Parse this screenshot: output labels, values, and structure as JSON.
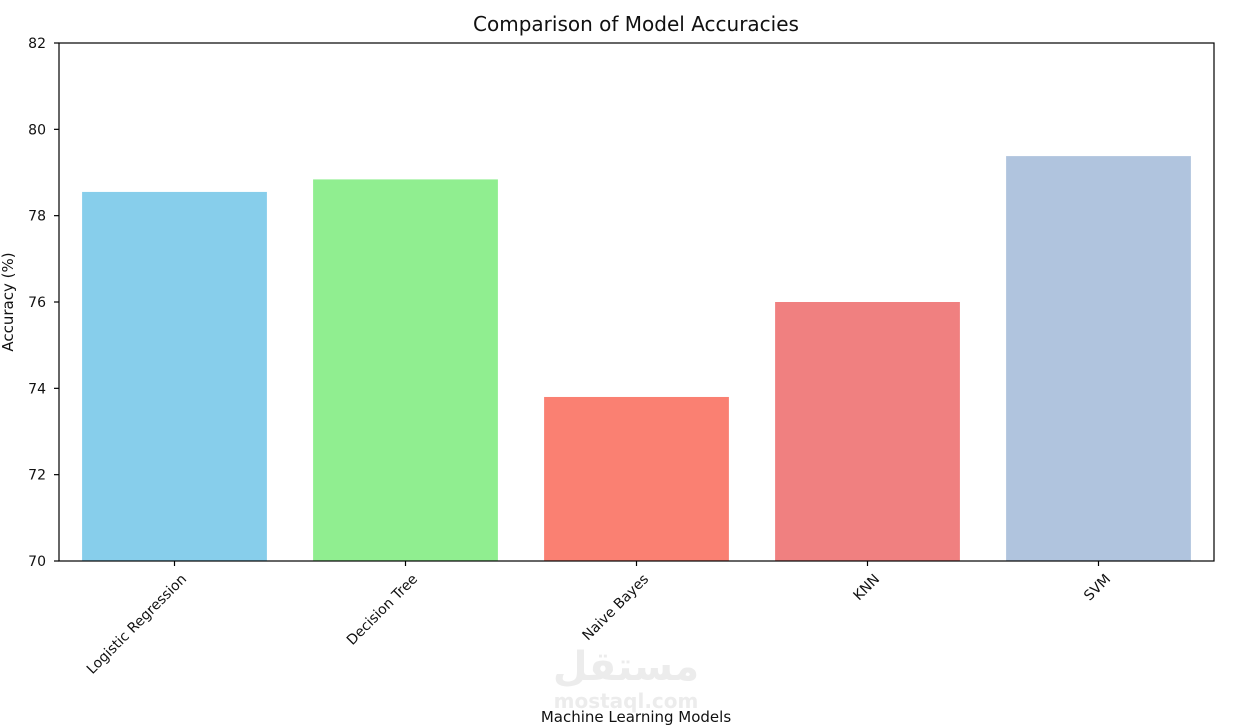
{
  "chart_data": {
    "type": "bar",
    "title": "Comparison of Model Accuracies",
    "xlabel": "Machine Learning Models",
    "ylabel": "Accuracy (%)",
    "categories": [
      "Logistic Regression",
      "Decision Tree",
      "Naive Bayes",
      "KNN",
      "SVM"
    ],
    "values": [
      78.55,
      78.84,
      73.8,
      76.0,
      79.38
    ],
    "colors": [
      "#87ceeb",
      "#90ee90",
      "#fa8072",
      "#f08080",
      "#b0c4de"
    ],
    "ylim": [
      70,
      82
    ],
    "yticks": [
      70,
      72,
      74,
      76,
      78,
      80,
      82
    ],
    "grid": false,
    "legend": "none"
  },
  "watermark": {
    "arabic": "مستقل",
    "latin": "mostaql.com"
  }
}
